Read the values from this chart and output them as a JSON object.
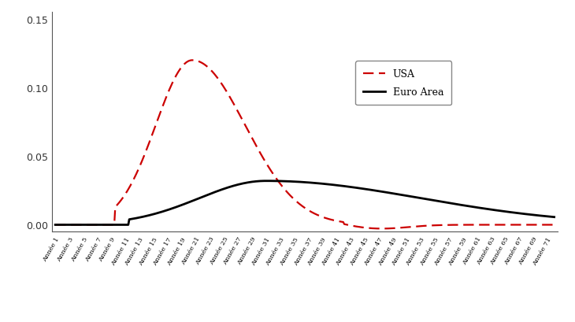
{
  "x_labels": [
    "Année 1",
    "Année 3",
    "Année 5",
    "Année 7",
    "Année 9",
    "Année 11",
    "Année 13",
    "Année 15",
    "Année 17",
    "Année 19",
    "Année 21",
    "Année 23",
    "Année 25",
    "Année 27",
    "Année 29",
    "Année 31",
    "Année 33",
    "Année 35",
    "Année 37",
    "Année 39",
    "Année 41",
    "Année 43",
    "Année 45",
    "Année 47",
    "Année 49",
    "Année 51",
    "Année 53",
    "Année 55",
    "Année 57",
    "Année 59",
    "Année 61",
    "Année 63",
    "Année 65",
    "Année 67",
    "Année 69",
    "Année 71"
  ],
  "usa_color": "#cc0000",
  "euro_color": "#000000",
  "ylim": [
    -0.005,
    0.155
  ],
  "yticks": [
    0.0,
    0.05,
    0.1,
    0.15
  ],
  "legend_usa": "USA",
  "legend_euro": "Euro Area",
  "background_color": "#ffffff",
  "label_fontsize": 6.0,
  "legend_fontsize": 9
}
